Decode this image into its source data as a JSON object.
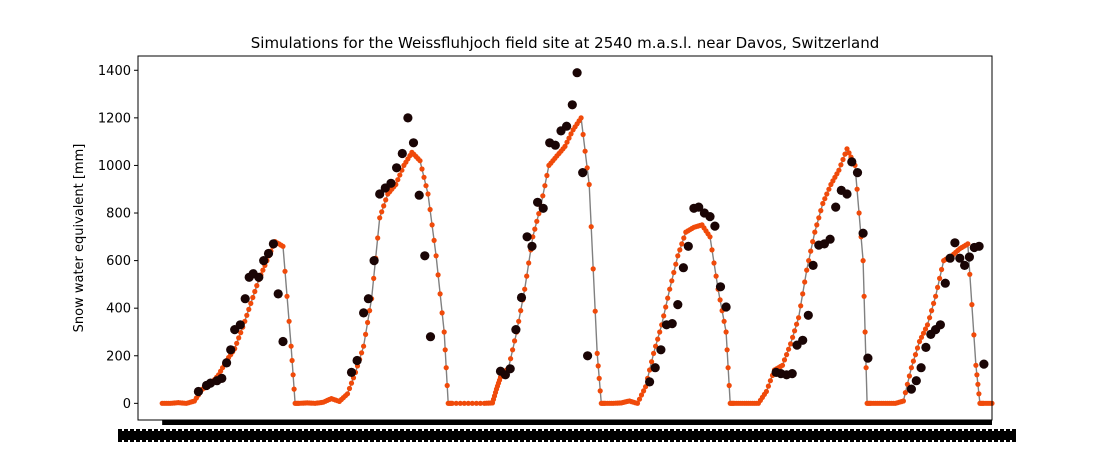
{
  "chart_data": {
    "type": "line",
    "title": "Simulations for the Weissfluhjoch field site at 2540 m.a.s.l. near Davos, Switzerland",
    "xlabel": "",
    "ylabel": "Snow water equivalent [mm]",
    "ylim": [
      -70,
      1460
    ],
    "xlim": [
      -3,
      103
    ],
    "yticks": [
      0,
      200,
      400,
      600,
      800,
      1000,
      1200,
      1400
    ],
    "grid": false,
    "legend": "none",
    "x_tick_labels_note": "overlapping, unreadable",
    "colors": {
      "simulated": "#f04a0a",
      "simulated_line": "#808080",
      "observed": "#1a0505"
    },
    "series": [
      {
        "name": "",
        "style": "line-with-dots",
        "points": [
          [
            0,
            0
          ],
          [
            1,
            0
          ],
          [
            2,
            3
          ],
          [
            3,
            0
          ],
          [
            4,
            10
          ],
          [
            5,
            60
          ],
          [
            6,
            80
          ],
          [
            7,
            120
          ],
          [
            8,
            180
          ],
          [
            9,
            230
          ],
          [
            10,
            320
          ],
          [
            11,
            420
          ],
          [
            12,
            520
          ],
          [
            13,
            600
          ],
          [
            14,
            680
          ],
          [
            15,
            660
          ],
          [
            16,
            240
          ],
          [
            16.5,
            0
          ],
          [
            17,
            0
          ],
          [
            18,
            2
          ],
          [
            19,
            0
          ],
          [
            20,
            5
          ],
          [
            21,
            20
          ],
          [
            22,
            8
          ],
          [
            23,
            40
          ],
          [
            24,
            130
          ],
          [
            25,
            240
          ],
          [
            26,
            440
          ],
          [
            27,
            780
          ],
          [
            28,
            880
          ],
          [
            29,
            920
          ],
          [
            30,
            1000
          ],
          [
            31,
            1055
          ],
          [
            32,
            1020
          ],
          [
            33,
            880
          ],
          [
            34,
            620
          ],
          [
            35,
            300
          ],
          [
            35.5,
            0
          ],
          [
            36,
            0
          ],
          [
            38,
            0
          ],
          [
            40,
            0
          ],
          [
            41,
            2
          ],
          [
            41.5,
            60
          ],
          [
            42,
            110
          ],
          [
            43,
            150
          ],
          [
            44,
            300
          ],
          [
            45,
            480
          ],
          [
            46,
            700
          ],
          [
            47,
            830
          ],
          [
            48,
            1000
          ],
          [
            49,
            1040
          ],
          [
            50,
            1080
          ],
          [
            51,
            1150
          ],
          [
            52,
            1200
          ],
          [
            53,
            920
          ],
          [
            54,
            210
          ],
          [
            54.5,
            0
          ],
          [
            55,
            0
          ],
          [
            56,
            0
          ],
          [
            57,
            2
          ],
          [
            58,
            10
          ],
          [
            59,
            0
          ],
          [
            60,
            70
          ],
          [
            61,
            210
          ],
          [
            62,
            330
          ],
          [
            63,
            480
          ],
          [
            64,
            620
          ],
          [
            65,
            720
          ],
          [
            66,
            740
          ],
          [
            67,
            750
          ],
          [
            68,
            700
          ],
          [
            69,
            480
          ],
          [
            70,
            300
          ],
          [
            70.5,
            0
          ],
          [
            71,
            0
          ],
          [
            72,
            0
          ],
          [
            73,
            0
          ],
          [
            74,
            0
          ],
          [
            75,
            50
          ],
          [
            76,
            140
          ],
          [
            77,
            160
          ],
          [
            78,
            250
          ],
          [
            79,
            360
          ],
          [
            80,
            560
          ],
          [
            81,
            720
          ],
          [
            82,
            840
          ],
          [
            83,
            920
          ],
          [
            84,
            980
          ],
          [
            85,
            1070
          ],
          [
            86,
            1000
          ],
          [
            87,
            600
          ],
          [
            87.5,
            0
          ],
          [
            88,
            0
          ],
          [
            89,
            0
          ],
          [
            90,
            0
          ],
          [
            91,
            0
          ],
          [
            92,
            10
          ],
          [
            93,
            150
          ],
          [
            94,
            260
          ],
          [
            95,
            330
          ],
          [
            96,
            450
          ],
          [
            97,
            600
          ],
          [
            98,
            620
          ],
          [
            99,
            650
          ],
          [
            100,
            670
          ],
          [
            101,
            160
          ],
          [
            101.5,
            0
          ],
          [
            102,
            0
          ],
          [
            103,
            0
          ]
        ]
      },
      {
        "name": "",
        "style": "marker",
        "points": [
          [
            4.5,
            50
          ],
          [
            5.5,
            75
          ],
          [
            6,
            85
          ],
          [
            6.8,
            95
          ],
          [
            7.4,
            105
          ],
          [
            8,
            170
          ],
          [
            8.5,
            225
          ],
          [
            9,
            310
          ],
          [
            9.7,
            330
          ],
          [
            10.3,
            440
          ],
          [
            10.8,
            530
          ],
          [
            11.3,
            545
          ],
          [
            12,
            530
          ],
          [
            12.6,
            600
          ],
          [
            13.2,
            630
          ],
          [
            13.8,
            670
          ],
          [
            14.4,
            460
          ],
          [
            15,
            260
          ],
          [
            23.5,
            130
          ],
          [
            24.2,
            180
          ],
          [
            25,
            380
          ],
          [
            25.6,
            440
          ],
          [
            26.3,
            600
          ],
          [
            27,
            880
          ],
          [
            27.7,
            905
          ],
          [
            28.4,
            925
          ],
          [
            29.1,
            990
          ],
          [
            29.8,
            1050
          ],
          [
            30.5,
            1200
          ],
          [
            31.2,
            1095
          ],
          [
            31.9,
            875
          ],
          [
            32.6,
            620
          ],
          [
            33.3,
            280
          ],
          [
            42,
            135
          ],
          [
            42.6,
            120
          ],
          [
            43.2,
            145
          ],
          [
            43.9,
            310
          ],
          [
            44.6,
            445
          ],
          [
            45.3,
            700
          ],
          [
            45.9,
            660
          ],
          [
            46.6,
            845
          ],
          [
            47.3,
            820
          ],
          [
            48.1,
            1095
          ],
          [
            48.8,
            1085
          ],
          [
            49.5,
            1145
          ],
          [
            50.2,
            1165
          ],
          [
            50.9,
            1255
          ],
          [
            51.5,
            1390
          ],
          [
            52.2,
            970
          ],
          [
            52.8,
            200
          ],
          [
            60.5,
            90
          ],
          [
            61.2,
            150
          ],
          [
            61.9,
            225
          ],
          [
            62.6,
            330
          ],
          [
            63.3,
            335
          ],
          [
            64,
            415
          ],
          [
            64.7,
            570
          ],
          [
            65.3,
            660
          ],
          [
            66,
            820
          ],
          [
            66.6,
            825
          ],
          [
            67.3,
            800
          ],
          [
            68,
            785
          ],
          [
            68.6,
            745
          ],
          [
            69.3,
            490
          ],
          [
            70,
            405
          ],
          [
            76.2,
            130
          ],
          [
            76.8,
            125
          ],
          [
            77.5,
            120
          ],
          [
            78.2,
            125
          ],
          [
            78.8,
            245
          ],
          [
            79.5,
            265
          ],
          [
            80.2,
            370
          ],
          [
            80.8,
            580
          ],
          [
            81.5,
            665
          ],
          [
            82.2,
            670
          ],
          [
            82.9,
            690
          ],
          [
            83.6,
            825
          ],
          [
            84.3,
            895
          ],
          [
            85,
            880
          ],
          [
            85.6,
            1015
          ],
          [
            86.3,
            970
          ],
          [
            87,
            715
          ],
          [
            87.6,
            190
          ],
          [
            93,
            60
          ],
          [
            93.6,
            95
          ],
          [
            94.2,
            150
          ],
          [
            94.8,
            235
          ],
          [
            95.4,
            290
          ],
          [
            96,
            310
          ],
          [
            96.6,
            330
          ],
          [
            97.2,
            505
          ],
          [
            97.8,
            610
          ],
          [
            98.4,
            675
          ],
          [
            99,
            610
          ],
          [
            99.6,
            580
          ],
          [
            100.2,
            615
          ],
          [
            100.8,
            655
          ],
          [
            101.4,
            660
          ],
          [
            102,
            165
          ]
        ]
      }
    ]
  }
}
